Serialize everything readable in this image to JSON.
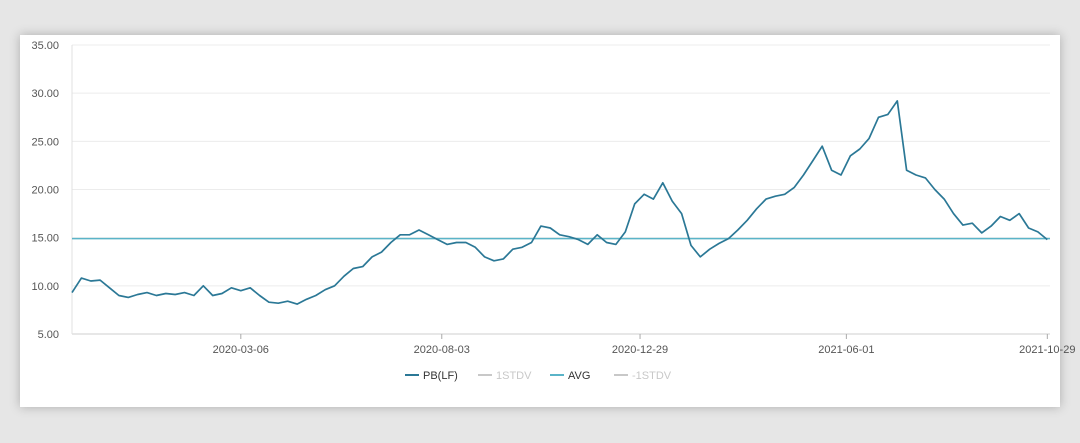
{
  "chart_data": {
    "type": "line",
    "title": "",
    "xlabel": "",
    "ylabel": "",
    "ylim": [
      5,
      35
    ],
    "xlim": [
      "2019-11-01",
      "2021-10-31"
    ],
    "y_ticks": [
      "5.00",
      "10.00",
      "15.00",
      "20.00",
      "25.00",
      "30.00",
      "35.00"
    ],
    "x_ticks": [
      "2020-03-06",
      "2020-08-03",
      "2020-12-29",
      "2021-06-01",
      "2021-10-29"
    ],
    "grid": true,
    "legend_position": "bottom",
    "series": [
      {
        "name": "PB(LF)",
        "color": "#2b7896",
        "x": [
          "2019-11-01",
          "2019-11-08",
          "2019-11-15",
          "2019-11-22",
          "2019-11-29",
          "2019-12-06",
          "2019-12-13",
          "2019-12-20",
          "2019-12-27",
          "2020-01-03",
          "2020-01-10",
          "2020-01-17",
          "2020-01-24",
          "2020-01-31",
          "2020-02-07",
          "2020-02-14",
          "2020-02-21",
          "2020-02-28",
          "2020-03-06",
          "2020-03-13",
          "2020-03-20",
          "2020-03-27",
          "2020-04-03",
          "2020-04-10",
          "2020-04-17",
          "2020-04-24",
          "2020-05-01",
          "2020-05-08",
          "2020-05-15",
          "2020-05-22",
          "2020-05-29",
          "2020-06-05",
          "2020-06-12",
          "2020-06-19",
          "2020-06-26",
          "2020-07-03",
          "2020-07-10",
          "2020-07-17",
          "2020-07-24",
          "2020-07-31",
          "2020-08-07",
          "2020-08-14",
          "2020-08-21",
          "2020-08-28",
          "2020-09-04",
          "2020-09-11",
          "2020-09-18",
          "2020-09-25",
          "2020-10-02",
          "2020-10-09",
          "2020-10-16",
          "2020-10-23",
          "2020-10-30",
          "2020-11-06",
          "2020-11-13",
          "2020-11-20",
          "2020-11-27",
          "2020-12-04",
          "2020-12-11",
          "2020-12-18",
          "2020-12-25",
          "2021-01-01",
          "2021-01-08",
          "2021-01-15",
          "2021-01-22",
          "2021-01-29",
          "2021-02-05",
          "2021-02-12",
          "2021-02-19",
          "2021-02-26",
          "2021-03-05",
          "2021-03-12",
          "2021-03-19",
          "2021-03-26",
          "2021-04-02",
          "2021-04-09",
          "2021-04-16",
          "2021-04-23",
          "2021-04-30",
          "2021-05-07",
          "2021-05-14",
          "2021-05-21",
          "2021-05-28",
          "2021-06-04",
          "2021-06-11",
          "2021-06-18",
          "2021-06-25",
          "2021-07-02",
          "2021-07-09",
          "2021-07-16",
          "2021-07-23",
          "2021-07-30",
          "2021-08-06",
          "2021-08-13",
          "2021-08-20",
          "2021-08-27",
          "2021-09-03",
          "2021-09-10",
          "2021-09-17",
          "2021-09-24",
          "2021-10-01",
          "2021-10-08",
          "2021-10-15",
          "2021-10-22",
          "2021-10-29"
        ],
        "values": [
          9.3,
          10.8,
          10.5,
          10.6,
          9.8,
          9.0,
          8.8,
          9.1,
          9.3,
          9.0,
          9.2,
          9.1,
          9.3,
          9.0,
          10.0,
          9.0,
          9.2,
          9.8,
          9.5,
          9.8,
          9.0,
          8.3,
          8.2,
          8.4,
          8.1,
          8.6,
          9.0,
          9.6,
          10.0,
          11.0,
          11.8,
          12.0,
          13.0,
          13.5,
          14.5,
          15.3,
          15.3,
          15.8,
          15.3,
          14.8,
          14.3,
          14.5,
          14.5,
          14.0,
          13.0,
          12.6,
          12.8,
          13.8,
          14.0,
          14.5,
          16.2,
          16.0,
          15.3,
          15.1,
          14.8,
          14.3,
          15.3,
          14.5,
          14.3,
          15.6,
          18.5,
          19.5,
          19.0,
          20.7,
          18.8,
          17.5,
          14.2,
          13.0,
          13.8,
          14.4,
          14.9,
          15.8,
          16.8,
          18.0,
          19.0,
          19.3,
          19.5,
          20.2,
          21.5,
          23.0,
          24.5,
          22.0,
          21.5,
          23.5,
          24.2,
          25.3,
          27.5,
          27.8,
          29.2,
          22.0,
          21.5,
          21.2,
          20.0,
          19.0,
          17.5,
          16.3,
          16.5,
          15.5,
          16.2,
          17.2,
          16.8,
          17.5,
          16.0,
          15.6,
          14.8
        ]
      },
      {
        "name": "1STDV",
        "color": "#c8c8c8",
        "values": []
      },
      {
        "name": "AVG",
        "color": "#5ab4c8",
        "constant": 14.9
      },
      {
        "name": "-1STDV",
        "color": "#c8c8c8",
        "values": []
      }
    ]
  }
}
